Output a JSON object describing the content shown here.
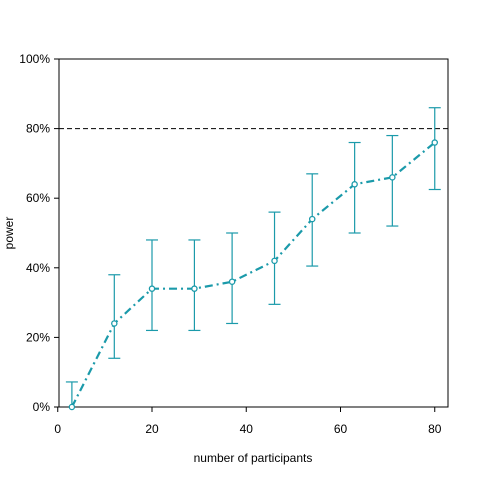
{
  "chart_data": {
    "type": "line",
    "title": "",
    "xlabel": "number of participants",
    "ylabel": "power",
    "xlim": [
      0,
      83
    ],
    "ylim": [
      0,
      100
    ],
    "x_ticks": [
      0,
      20,
      40,
      60,
      80
    ],
    "y_ticks": [
      0,
      20,
      40,
      60,
      80,
      100
    ],
    "y_tick_format": "percent",
    "grid": false,
    "reference_line": {
      "y": 80,
      "style": "dashed",
      "color": "#000000"
    },
    "series": [
      {
        "color": "#1b9aaa",
        "line_style": "dashdot",
        "marker": "open-circle",
        "x": [
          3,
          12,
          20,
          29,
          37,
          46,
          54,
          63,
          71,
          80
        ],
        "y": [
          0,
          24,
          34,
          34,
          36,
          42,
          54,
          64,
          66,
          76
        ],
        "y_lower": [
          0,
          14,
          22,
          22,
          24,
          29.5,
          40.5,
          50,
          52,
          62.5
        ],
        "y_upper": [
          7.2,
          38,
          48,
          48,
          50,
          56,
          67,
          76,
          78,
          86
        ]
      }
    ]
  }
}
